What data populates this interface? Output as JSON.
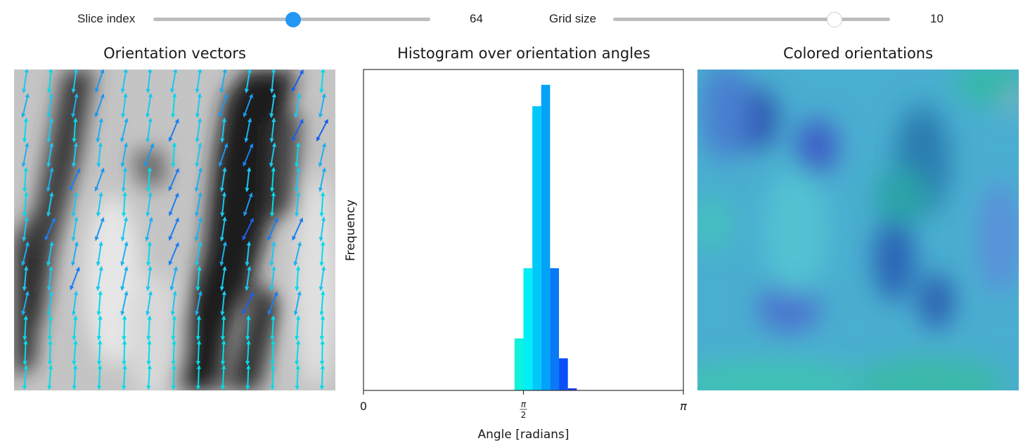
{
  "controls": {
    "slice_index": {
      "label": "Slice index",
      "value": "64",
      "fraction": 0.505,
      "thumb_color": "#2196f3"
    },
    "grid_size": {
      "label": "Grid size",
      "value": "10",
      "fraction": 0.8,
      "thumb_color": "#ffffff"
    }
  },
  "panels": {
    "vectors": {
      "title": "Orientation vectors"
    },
    "histogram": {
      "title": "Histogram over orientation angles"
    },
    "colored": {
      "title": "Colored orientations"
    }
  },
  "chart_data": {
    "type": "bar",
    "title": "Histogram over orientation angles",
    "xlabel": "Angle [radians]",
    "ylabel": "Frequency",
    "xlim": [
      0,
      3.14159
    ],
    "ylim": [
      0,
      1.05
    ],
    "xticks": [
      {
        "value": 0,
        "label": "0"
      },
      {
        "value": 1.5708,
        "label": "π/2",
        "num": "π",
        "den": "2"
      },
      {
        "value": 3.14159,
        "label": "π"
      }
    ],
    "yticks": [],
    "bin_width": 0.0873,
    "bins": [
      {
        "start": 1.4835,
        "value": 0.17,
        "color": "#0ff2dc"
      },
      {
        "start": 1.5708,
        "value": 0.4,
        "color": "#00eef8"
      },
      {
        "start": 1.6581,
        "value": 0.93,
        "color": "#00c8f8"
      },
      {
        "start": 1.7453,
        "value": 1.0,
        "color": "#00a3f8"
      },
      {
        "start": 1.8326,
        "value": 0.4,
        "color": "#0a79f8"
      },
      {
        "start": 1.9199,
        "value": 0.105,
        "color": "#0a4ef8"
      },
      {
        "start": 2.0071,
        "value": 0.007,
        "color": "#1f3ff0"
      }
    ],
    "grid": false,
    "legend": "none"
  }
}
